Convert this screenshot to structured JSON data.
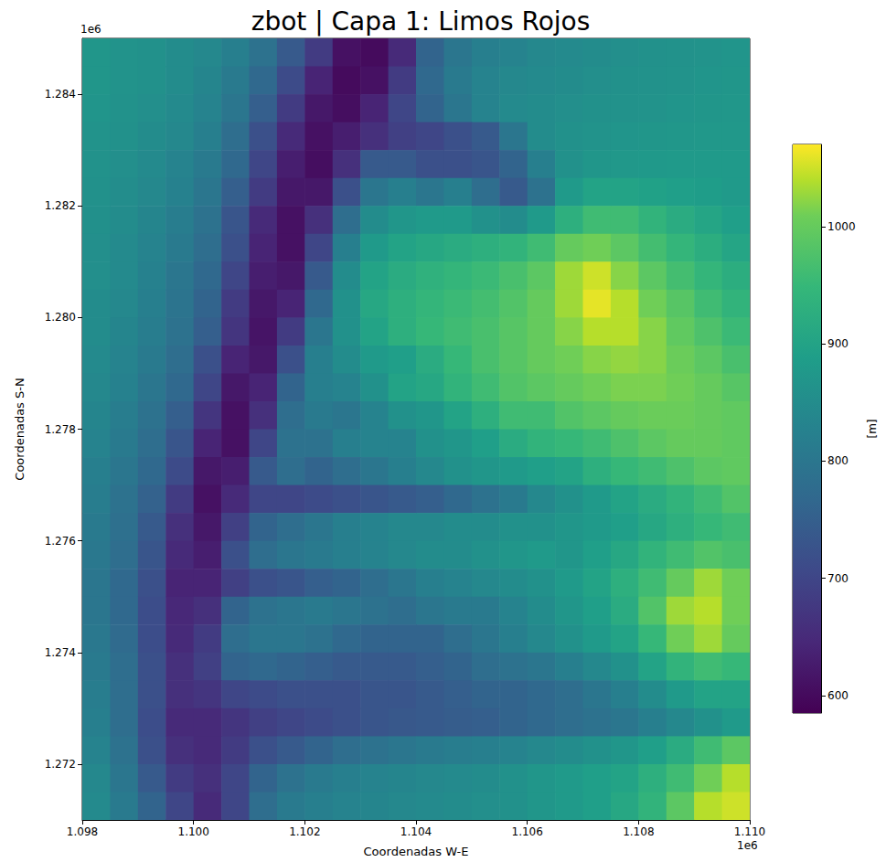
{
  "chart_data": {
    "type": "heatmap",
    "title": "zbot | Capa 1: Limos Rojos",
    "xlabel": "Coordenadas W-E",
    "ylabel": "Coordenadas S-N",
    "x_offset_text": "1e6",
    "y_offset_text": "1e6",
    "xlim": [
      1098000,
      1110000
    ],
    "ylim": [
      1271000,
      1285000
    ],
    "xticks": [
      {
        "value": 1098000,
        "label": "1.098"
      },
      {
        "value": 1100000,
        "label": "1.100"
      },
      {
        "value": 1102000,
        "label": "1.102"
      },
      {
        "value": 1104000,
        "label": "1.104"
      },
      {
        "value": 1106000,
        "label": "1.106"
      },
      {
        "value": 1108000,
        "label": "1.108"
      },
      {
        "value": 1110000,
        "label": "1.110"
      }
    ],
    "yticks": [
      {
        "value": 1272000,
        "label": "1.272"
      },
      {
        "value": 1274000,
        "label": "1.274"
      },
      {
        "value": 1276000,
        "label": "1.276"
      },
      {
        "value": 1278000,
        "label": "1.278"
      },
      {
        "value": 1280000,
        "label": "1.280"
      },
      {
        "value": 1282000,
        "label": "1.282"
      },
      {
        "value": 1284000,
        "label": "1.284"
      }
    ],
    "grid": false,
    "x": [
      1098250,
      1098750,
      1099250,
      1099750,
      1100250,
      1100750,
      1101250,
      1101750,
      1102250,
      1102750,
      1103250,
      1103750,
      1104250,
      1104750,
      1105250,
      1105750,
      1106250,
      1106750,
      1107250,
      1107750,
      1108250,
      1108750,
      1109250,
      1109750
    ],
    "y": [
      1284750,
      1284250,
      1283750,
      1283250,
      1282750,
      1282250,
      1281750,
      1281250,
      1280750,
      1280250,
      1279750,
      1279250,
      1278750,
      1278250,
      1277750,
      1277250,
      1276750,
      1276250,
      1275750,
      1275250,
      1274750,
      1274250,
      1273750,
      1273250,
      1272750,
      1272250,
      1271750,
      1271250
    ],
    "values": [
      [
        870,
        865,
        860,
        850,
        840,
        820,
        790,
        740,
        680,
        610,
        600,
        650,
        760,
        800,
        820,
        830,
        840,
        845,
        850,
        855,
        860,
        862,
        865,
        868
      ],
      [
        870,
        865,
        860,
        850,
        835,
        810,
        770,
        710,
        640,
        600,
        610,
        680,
        770,
        810,
        830,
        840,
        845,
        850,
        855,
        860,
        862,
        865,
        868,
        870
      ],
      [
        868,
        862,
        855,
        845,
        830,
        800,
        750,
        680,
        620,
        605,
        640,
        700,
        760,
        800,
        830,
        845,
        850,
        855,
        860,
        862,
        865,
        868,
        870,
        872
      ],
      [
        865,
        860,
        850,
        840,
        820,
        780,
        720,
        650,
        610,
        630,
        660,
        690,
        700,
        720,
        740,
        800,
        850,
        860,
        865,
        868,
        870,
        872,
        875,
        875
      ],
      [
        862,
        855,
        845,
        830,
        810,
        770,
        700,
        630,
        605,
        660,
        740,
        740,
        720,
        720,
        730,
        760,
        820,
        860,
        870,
        875,
        878,
        880,
        880,
        880
      ],
      [
        860,
        852,
        840,
        825,
        800,
        750,
        680,
        620,
        620,
        720,
        800,
        820,
        800,
        820,
        780,
        740,
        790,
        880,
        900,
        900,
        895,
        890,
        885,
        880
      ],
      [
        858,
        850,
        835,
        815,
        790,
        730,
        650,
        610,
        660,
        780,
        850,
        870,
        880,
        880,
        860,
        850,
        880,
        930,
        960,
        960,
        940,
        920,
        905,
        890
      ],
      [
        855,
        845,
        830,
        810,
        780,
        720,
        640,
        610,
        700,
        820,
        880,
        900,
        910,
        920,
        930,
        940,
        960,
        1000,
        1010,
        990,
        965,
        945,
        925,
        905
      ],
      [
        855,
        845,
        825,
        800,
        770,
        700,
        630,
        620,
        740,
        850,
        900,
        920,
        935,
        945,
        955,
        970,
        990,
        1030,
        1050,
        1020,
        990,
        965,
        945,
        925
      ],
      [
        850,
        840,
        820,
        795,
        760,
        680,
        620,
        640,
        770,
        860,
        910,
        930,
        945,
        955,
        965,
        980,
        1000,
        1030,
        1060,
        1040,
        1010,
        985,
        960,
        940
      ],
      [
        850,
        835,
        815,
        790,
        750,
        670,
        615,
        680,
        800,
        860,
        900,
        930,
        950,
        960,
        970,
        985,
        1000,
        1020,
        1040,
        1040,
        1020,
        995,
        975,
        955
      ],
      [
        845,
        830,
        810,
        780,
        720,
        640,
        620,
        720,
        820,
        850,
        880,
        890,
        920,
        950,
        970,
        985,
        1000,
        1010,
        1020,
        1025,
        1020,
        1005,
        990,
        970
      ],
      [
        840,
        825,
        800,
        770,
        700,
        620,
        640,
        760,
        820,
        830,
        860,
        900,
        910,
        940,
        960,
        980,
        990,
        1000,
        1010,
        1015,
        1015,
        1010,
        1000,
        985
      ],
      [
        835,
        815,
        790,
        750,
        670,
        610,
        660,
        780,
        810,
        800,
        830,
        860,
        870,
        900,
        930,
        960,
        960,
        980,
        990,
        1000,
        1005,
        1005,
        1000,
        995
      ],
      [
        830,
        810,
        780,
        730,
        640,
        610,
        700,
        790,
        790,
        820,
        830,
        830,
        860,
        870,
        890,
        920,
        940,
        950,
        960,
        975,
        990,
        1000,
        1000,
        995
      ],
      [
        820,
        800,
        770,
        710,
        620,
        630,
        740,
        780,
        760,
        780,
        800,
        820,
        840,
        860,
        870,
        880,
        890,
        900,
        930,
        950,
        960,
        975,
        990,
        995
      ],
      [
        815,
        790,
        755,
        680,
        610,
        650,
        700,
        700,
        710,
        720,
        730,
        740,
        750,
        770,
        790,
        810,
        840,
        860,
        880,
        900,
        920,
        940,
        960,
        980
      ],
      [
        810,
        785,
        740,
        660,
        620,
        690,
        760,
        780,
        800,
        820,
        830,
        840,
        840,
        850,
        850,
        860,
        860,
        870,
        880,
        890,
        910,
        930,
        950,
        960
      ],
      [
        805,
        780,
        730,
        650,
        630,
        720,
        780,
        800,
        810,
        820,
        830,
        840,
        850,
        850,
        860,
        870,
        880,
        870,
        890,
        910,
        940,
        960,
        980,
        970
      ],
      [
        800,
        770,
        720,
        640,
        640,
        690,
        720,
        730,
        750,
        760,
        780,
        800,
        820,
        830,
        840,
        850,
        860,
        880,
        900,
        930,
        960,
        1000,
        1030,
        1010
      ],
      [
        800,
        770,
        715,
        645,
        660,
        760,
        790,
        800,
        810,
        800,
        790,
        780,
        800,
        810,
        810,
        830,
        850,
        870,
        890,
        920,
        980,
        1030,
        1040,
        1010
      ],
      [
        805,
        775,
        715,
        650,
        680,
        780,
        800,
        800,
        790,
        770,
        760,
        760,
        760,
        780,
        800,
        820,
        840,
        860,
        880,
        900,
        950,
        1010,
        1030,
        1000
      ],
      [
        810,
        780,
        720,
        660,
        690,
        760,
        770,
        760,
        750,
        740,
        740,
        740,
        750,
        760,
        780,
        790,
        800,
        820,
        840,
        860,
        900,
        940,
        960,
        950
      ],
      [
        815,
        780,
        720,
        660,
        670,
        700,
        710,
        720,
        720,
        720,
        730,
        730,
        740,
        750,
        760,
        760,
        770,
        780,
        800,
        820,
        850,
        880,
        900,
        900
      ],
      [
        820,
        780,
        715,
        650,
        650,
        670,
        690,
        700,
        710,
        720,
        730,
        735,
        740,
        745,
        750,
        760,
        770,
        780,
        790,
        800,
        820,
        840,
        860,
        880
      ],
      [
        830,
        790,
        720,
        660,
        650,
        680,
        720,
        740,
        760,
        780,
        790,
        800,
        810,
        815,
        820,
        830,
        840,
        850,
        860,
        870,
        890,
        920,
        960,
        990
      ],
      [
        840,
        800,
        740,
        680,
        660,
        700,
        760,
        790,
        810,
        820,
        830,
        835,
        840,
        845,
        850,
        860,
        870,
        880,
        890,
        900,
        930,
        960,
        1010,
        1040
      ],
      [
        845,
        810,
        760,
        700,
        650,
        700,
        780,
        810,
        820,
        830,
        835,
        840,
        845,
        850,
        855,
        860,
        870,
        880,
        890,
        910,
        940,
        990,
        1040,
        1050
      ]
    ],
    "colorbar": {
      "label": "[m]",
      "range": [
        585,
        1070
      ],
      "ticks": [
        600,
        700,
        800,
        900,
        1000
      ]
    }
  }
}
